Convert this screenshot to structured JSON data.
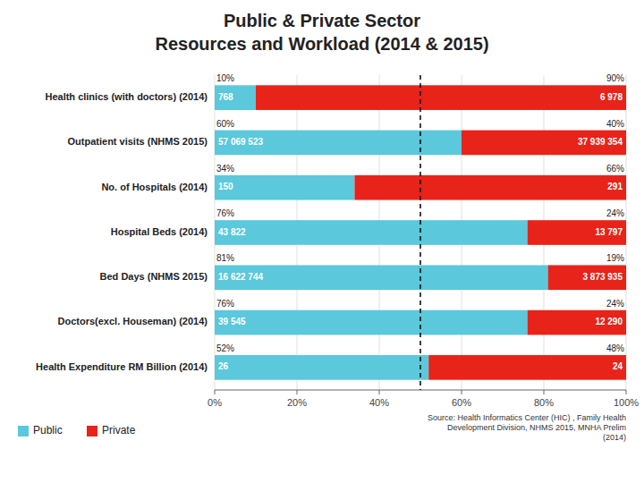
{
  "chart_data": {
    "type": "bar",
    "orientation": "horizontal",
    "stacked": true,
    "title": "Public & Private Sector",
    "subtitle": "Resources and Workload (2014 & 2015)",
    "categories": [
      "Health clinics (with doctors) (2014)",
      "Outpatient visits (NHMS 2015)",
      "No. of Hospitals (2014)",
      "Hospital Beds (2014)",
      "Bed Days (NHMS 2015)",
      "Doctors(excl. Houseman) (2014)",
      "Health Expenditure RM Billion (2014)"
    ],
    "series": [
      {
        "name": "Public",
        "color": "#5BC8DC",
        "values": [
          10,
          60,
          34,
          76,
          81,
          76,
          52
        ],
        "value_labels": [
          "10%",
          "60%",
          "34%",
          "76%",
          "81%",
          "76%",
          "52%"
        ],
        "count_labels": [
          "768",
          "57 069 523",
          "150",
          "43 822",
          "16 622 744",
          "39 545",
          "26"
        ]
      },
      {
        "name": "Private",
        "color": "#E8231A",
        "values": [
          90,
          40,
          66,
          24,
          19,
          24,
          48
        ],
        "value_labels": [
          "90%",
          "40%",
          "66%",
          "24%",
          "19%",
          "24%",
          "48%"
        ],
        "count_labels": [
          "6 978",
          "37 939 354",
          "291",
          "13 797",
          "3 873 935",
          "12 290",
          "24"
        ]
      }
    ],
    "xlim": [
      0,
      100
    ],
    "xticks": [
      {
        "value": 0,
        "label": "0%"
      },
      {
        "value": 20,
        "label": "20%"
      },
      {
        "value": 40,
        "label": "40%"
      },
      {
        "value": 60,
        "label": "60%"
      },
      {
        "value": 80,
        "label": "80%"
      },
      {
        "value": 100,
        "label": "100%"
      }
    ],
    "reference_line": 50,
    "grid": true,
    "data_labels": true,
    "legend": "lower left",
    "source": "Source: Health Informatics Center (HIC) , Family Health\nDevelopment Division, NHMS 2015, MNHA Prelim\n(2014)"
  }
}
